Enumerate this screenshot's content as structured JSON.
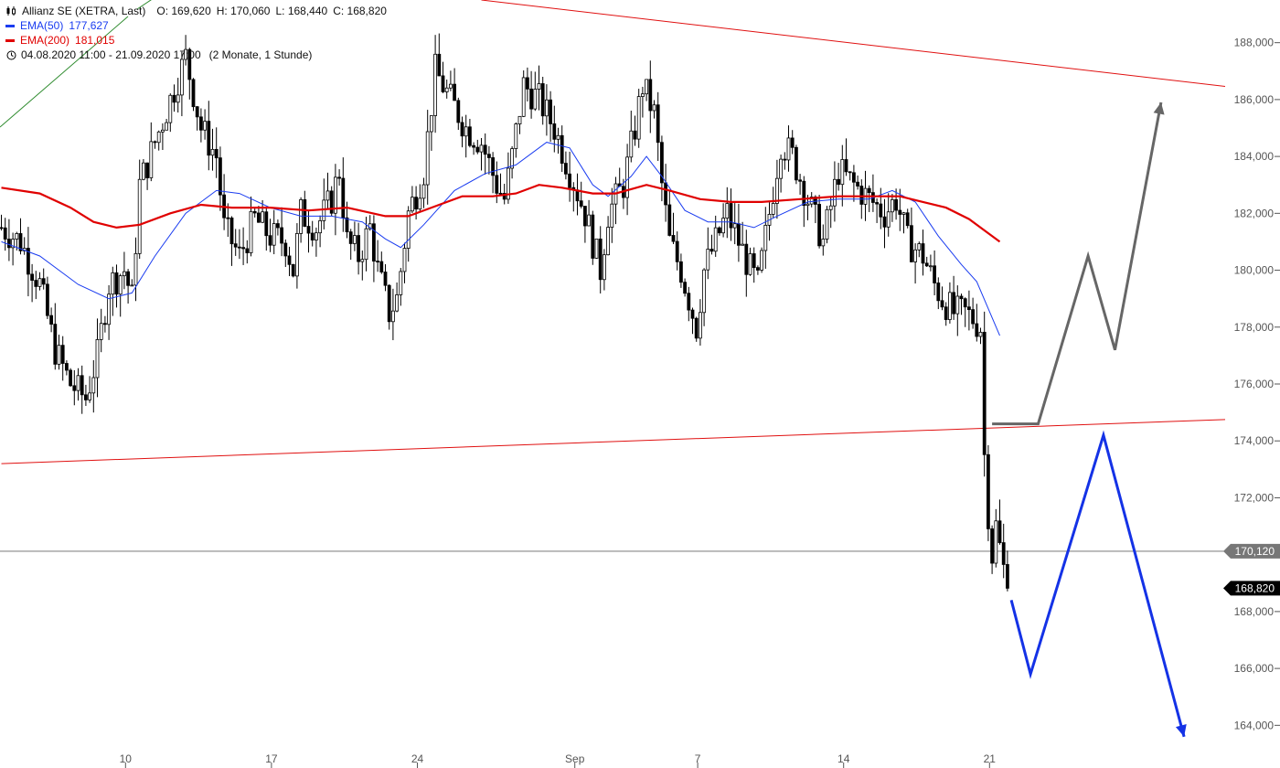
{
  "legend": {
    "instrument": "Allianz SE (XETRA, Last)",
    "open": "O: 169,620",
    "high": "H: 170,060",
    "low": "L: 168,440",
    "close": "C: 168,820",
    "ema50_label": "EMA(50)",
    "ema50_value": "177,627",
    "ema200_label": "EMA(200)",
    "ema200_value": "181,015",
    "range": "04.08.2020 11:00 - 21.09.2020 17:00",
    "range_detail": "(2 Monate, 1 Stunde)"
  },
  "colors": {
    "candle": "#000000",
    "ema50": "#1a3cf0",
    "ema200": "#e00000",
    "trendline": "#e01010",
    "hline": "#666666",
    "scenario_up": "#666666",
    "scenario_down": "#1432e6",
    "old_trend": "#2e8b2e"
  },
  "chart_data": {
    "type": "line",
    "title": "Allianz SE (XETRA, Last)",
    "timeframe": "1 Stunde",
    "period": "04.08.2020 11:00 - 21.09.2020 17:00",
    "ylim": [
      162.5,
      189.5
    ],
    "y_ticks": [
      164,
      166,
      168,
      170.12,
      172,
      174,
      176,
      178,
      180,
      182,
      184,
      186,
      188
    ],
    "y_tick_labels": [
      "164,000",
      "166,000",
      "168,000",
      "170,120",
      "172,000",
      "174,000",
      "176,000",
      "178,000",
      "180,000",
      "182,000",
      "184,000",
      "186,000",
      "188,000"
    ],
    "x_labels": [
      "10",
      "17",
      "24",
      "Sep",
      "7",
      "14",
      "21"
    ],
    "x_label_bar": [
      34,
      72,
      110,
      151,
      183,
      221,
      259
    ],
    "bars_total_span": 300,
    "price_markers": [
      {
        "label": "170,120",
        "value": 170.12,
        "kind": "level"
      },
      {
        "label": "168,820",
        "value": 168.82,
        "kind": "last"
      }
    ],
    "candles_keypoints": [
      [
        0,
        181.5
      ],
      [
        5,
        181.0
      ],
      [
        10,
        179.5
      ],
      [
        14,
        177.2
      ],
      [
        18,
        176.0
      ],
      [
        22,
        175.5
      ],
      [
        25,
        177.0
      ],
      [
        28,
        179.5
      ],
      [
        32,
        180.0
      ],
      [
        34,
        179.0
      ],
      [
        36,
        183.0
      ],
      [
        40,
        184.5
      ],
      [
        44,
        186.0
      ],
      [
        48,
        187.5
      ],
      [
        52,
        185.0
      ],
      [
        56,
        184.0
      ],
      [
        58,
        181.5
      ],
      [
        62,
        180.5
      ],
      [
        66,
        181.8
      ],
      [
        70,
        181.2
      ],
      [
        74,
        181.0
      ],
      [
        76,
        180.0
      ],
      [
        78,
        182.0
      ],
      [
        82,
        181.5
      ],
      [
        86,
        182.5
      ],
      [
        88,
        183.5
      ],
      [
        90,
        181.0
      ],
      [
        93,
        180.5
      ],
      [
        96,
        181.5
      ],
      [
        98,
        180.0
      ],
      [
        101,
        178.5
      ],
      [
        103,
        179.0
      ],
      [
        106,
        182.0
      ],
      [
        110,
        183.5
      ],
      [
        113,
        187.0
      ],
      [
        117,
        186.0
      ],
      [
        121,
        185.0
      ],
      [
        125,
        184.5
      ],
      [
        129,
        183.0
      ],
      [
        131,
        182.5
      ],
      [
        133,
        184.0
      ],
      [
        136,
        186.5
      ],
      [
        140,
        186.0
      ],
      [
        144,
        185.0
      ],
      [
        148,
        183.5
      ],
      [
        152,
        182.0
      ],
      [
        156,
        180.0
      ],
      [
        158,
        182.0
      ],
      [
        162,
        183.0
      ],
      [
        165,
        185.0
      ],
      [
        167,
        186.5
      ],
      [
        170,
        185.5
      ],
      [
        172,
        183.0
      ],
      [
        174,
        181.0
      ],
      [
        177,
        180.0
      ],
      [
        179,
        179.0
      ],
      [
        181,
        178.0
      ],
      [
        183,
        180.0
      ],
      [
        186,
        181.0
      ],
      [
        189,
        182.0
      ],
      [
        192,
        181.0
      ],
      [
        195,
        180.0
      ],
      [
        197,
        179.5
      ],
      [
        200,
        182.0
      ],
      [
        203,
        184.5
      ],
      [
        206,
        184.0
      ],
      [
        210,
        182.5
      ],
      [
        214,
        181.0
      ],
      [
        218,
        183.5
      ],
      [
        222,
        183.0
      ],
      [
        226,
        182.5
      ],
      [
        230,
        182.0
      ],
      [
        233,
        182.5
      ],
      [
        236,
        181.0
      ],
      [
        240,
        180.5
      ],
      [
        243,
        179.5
      ],
      [
        245,
        179.0
      ],
      [
        248,
        178.5
      ],
      [
        251,
        178.5
      ],
      [
        253,
        178.3
      ],
      [
        255,
        178.0
      ],
      [
        256,
        173.5
      ],
      [
        257,
        171.5
      ],
      [
        258,
        170.0
      ],
      [
        259,
        171.0
      ],
      [
        261,
        169.5
      ],
      [
        262,
        168.82
      ]
    ],
    "series": [
      {
        "name": "EMA(50)",
        "points": [
          [
            0,
            181.0
          ],
          [
            10,
            180.5
          ],
          [
            20,
            179.5
          ],
          [
            28,
            179.0
          ],
          [
            34,
            179.2
          ],
          [
            40,
            180.5
          ],
          [
            48,
            182.0
          ],
          [
            56,
            182.8
          ],
          [
            62,
            182.7
          ],
          [
            70,
            182.2
          ],
          [
            78,
            181.9
          ],
          [
            86,
            181.9
          ],
          [
            94,
            181.7
          ],
          [
            100,
            181.1
          ],
          [
            104,
            180.8
          ],
          [
            110,
            181.6
          ],
          [
            118,
            182.8
          ],
          [
            126,
            183.4
          ],
          [
            134,
            183.7
          ],
          [
            142,
            184.5
          ],
          [
            148,
            184.3
          ],
          [
            154,
            183.0
          ],
          [
            158,
            182.6
          ],
          [
            164,
            183.3
          ],
          [
            168,
            184.0
          ],
          [
            172,
            183.3
          ],
          [
            178,
            182.1
          ],
          [
            184,
            181.7
          ],
          [
            190,
            181.7
          ],
          [
            196,
            181.5
          ],
          [
            202,
            181.9
          ],
          [
            210,
            182.4
          ],
          [
            218,
            182.5
          ],
          [
            226,
            182.5
          ],
          [
            232,
            182.8
          ],
          [
            238,
            182.4
          ],
          [
            244,
            181.2
          ],
          [
            250,
            180.2
          ],
          [
            254,
            179.6
          ],
          [
            260,
            177.7
          ]
        ]
      },
      {
        "name": "EMA(200)",
        "points": [
          [
            0,
            182.9
          ],
          [
            10,
            182.7
          ],
          [
            18,
            182.2
          ],
          [
            24,
            181.7
          ],
          [
            30,
            181.5
          ],
          [
            36,
            181.6
          ],
          [
            44,
            182.0
          ],
          [
            52,
            182.3
          ],
          [
            60,
            182.2
          ],
          [
            70,
            182.2
          ],
          [
            80,
            182.1
          ],
          [
            90,
            182.2
          ],
          [
            100,
            181.9
          ],
          [
            106,
            181.9
          ],
          [
            112,
            182.2
          ],
          [
            120,
            182.6
          ],
          [
            128,
            182.6
          ],
          [
            134,
            182.7
          ],
          [
            140,
            183.0
          ],
          [
            146,
            182.9
          ],
          [
            154,
            182.7
          ],
          [
            160,
            182.7
          ],
          [
            168,
            183.0
          ],
          [
            174,
            182.8
          ],
          [
            182,
            182.5
          ],
          [
            190,
            182.4
          ],
          [
            198,
            182.4
          ],
          [
            208,
            182.5
          ],
          [
            218,
            182.6
          ],
          [
            228,
            182.6
          ],
          [
            234,
            182.6
          ],
          [
            240,
            182.4
          ],
          [
            246,
            182.2
          ],
          [
            252,
            181.8
          ],
          [
            256,
            181.4
          ],
          [
            260,
            181.0
          ]
        ]
      }
    ],
    "trendlines": [
      {
        "name": "upper",
        "from": [
          125,
          189.5
        ],
        "to": [
          329,
          186.3
        ]
      },
      {
        "name": "lower",
        "from": [
          0,
          173.2
        ],
        "to": [
          329,
          174.8
        ]
      }
    ],
    "scenarios": [
      {
        "name": "up",
        "points": [
          [
            258,
            174.6
          ],
          [
            270,
            174.6
          ],
          [
            283,
            180.5
          ],
          [
            290,
            177.2
          ],
          [
            302,
            185.9
          ]
        ]
      },
      {
        "name": "down",
        "points": [
          [
            263,
            168.4
          ],
          [
            268,
            165.8
          ],
          [
            287,
            174.2
          ],
          [
            308,
            163.6
          ]
        ]
      }
    ],
    "horizontal_lines": [
      170.12
    ],
    "grid": false
  }
}
